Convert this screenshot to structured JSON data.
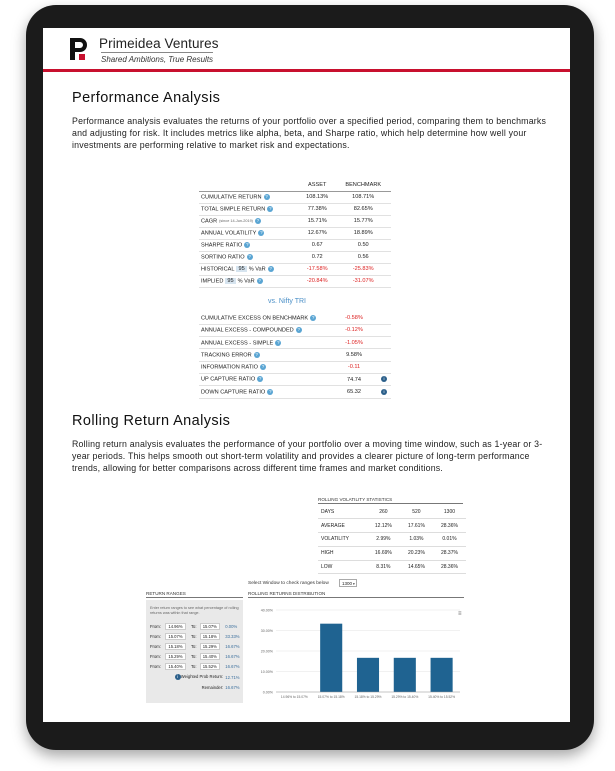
{
  "brand": {
    "name": "Primeidea Ventures",
    "tagline": "Shared Ambitions, True Results",
    "logo_letter": "P",
    "accent": "#c8102e"
  },
  "performance": {
    "title": "Performance Analysis",
    "description": "Performance analysis evaluates the returns of your portfolio over a specified period, comparing them to benchmarks and adjusting for risk. It includes metrics like alpha, beta, and Sharpe ratio, which help determine how well your investments are performing relative to market risk and expectations.",
    "headers": {
      "asset": "ASSET",
      "benchmark": "BENCHMARK"
    },
    "rows": [
      {
        "label": "CUMULATIVE RETURN",
        "asset": "108.13%",
        "benchmark": "108.71%"
      },
      {
        "label": "TOTAL SIMPLE RETURN",
        "asset": "77.38%",
        "benchmark": "82.65%"
      },
      {
        "label": "CAGR",
        "note": "(since 14-Jun-2019)",
        "asset": "15.71%",
        "benchmark": "15.77%"
      },
      {
        "label": "ANNUAL VOLATILITY",
        "asset": "12.67%",
        "benchmark": "18.89%"
      },
      {
        "label": "SHARPE RATIO",
        "asset": "0.67",
        "benchmark": "0.50"
      },
      {
        "label": "SORTINO RATIO",
        "asset": "0.72",
        "benchmark": "0.56"
      },
      {
        "label": "HISTORICAL",
        "input": "95",
        "suffix": "% VaR",
        "asset": "-17.58%",
        "benchmark": "-25.83%"
      },
      {
        "label": "IMPLIED",
        "input": "95",
        "suffix": "% VaR",
        "asset": "-20.84%",
        "benchmark": "-31.07%"
      }
    ],
    "vs_label": "vs. Nifty TRI",
    "bench_rows": [
      {
        "label": "CUMULATIVE EXCESS ON BENCHMARK",
        "value": "-0.58%",
        "neg": true,
        "info": false
      },
      {
        "label": "ANNUAL EXCESS - COMPOUNDED",
        "value": "-0.12%",
        "neg": true,
        "info": false
      },
      {
        "label": "ANNUAL EXCESS - SIMPLE",
        "value": "-1.05%",
        "neg": true,
        "info": false
      },
      {
        "label": "TRACKING ERROR",
        "value": "9.58%",
        "neg": false,
        "info": false
      },
      {
        "label": "INFORMATION RATIO",
        "value": "-0.11",
        "neg": true,
        "info": false
      },
      {
        "label": "UP CAPTURE RATIO",
        "value": "74.74",
        "neg": false,
        "info": true
      },
      {
        "label": "DOWN CAPTURE RATIO",
        "value": "65.32",
        "neg": false,
        "info": true
      }
    ]
  },
  "rolling": {
    "title": "Rolling Return Analysis",
    "description": "Rolling return analysis evaluates the performance of your portfolio over a moving time window, such as 1-year or 3-year periods. This helps smooth out short-term volatility and provides a clearer picture of long-term performance trends, allowing for better comparisons across different time frames and market conditions.",
    "volatility": {
      "title": "ROLLING VOLATILITY STATISTICS",
      "header": [
        "DAYS",
        "260",
        "520",
        "1300"
      ],
      "rows": [
        [
          "AVERAGE",
          "12.12%",
          "17.61%",
          "28.36%"
        ],
        [
          "VOLATILITY",
          "2.99%",
          "1.03%",
          "0.01%"
        ],
        [
          "HIGH",
          "16.69%",
          "20.23%",
          "28.37%"
        ],
        [
          "LOW",
          "8.31%",
          "14.65%",
          "28.36%"
        ]
      ]
    },
    "window_label": "Select Window to check ranges below",
    "window_value": "1300",
    "ranges": {
      "title": "RETURN RANGES",
      "note": "Enter return ranges to see what percentage of rolling returns was within that range.",
      "from_label": "From:",
      "to_label": "To:",
      "rows": [
        {
          "from": "14.96%",
          "to": "15.07%",
          "pct": "0.00%"
        },
        {
          "from": "15.07%",
          "to": "15.18%",
          "pct": "33.33%"
        },
        {
          "from": "15.18%",
          "to": "15.29%",
          "pct": "16.67%"
        },
        {
          "from": "15.29%",
          "to": "15.40%",
          "pct": "16.67%"
        },
        {
          "from": "15.40%",
          "to": "15.52%",
          "pct": "16.67%"
        }
      ],
      "weighted_label": "Weighted Prob Return:",
      "weighted_value": "12.71%",
      "remainder_label": "Remainder:",
      "remainder_value": "16.67%"
    },
    "distribution_title": "ROLLING RETURNS DISTRIBUTION"
  },
  "chart_data": {
    "type": "bar",
    "categories": [
      "14.96% to 15.07%",
      "15.07% to 15.18%",
      "15.18% to 15.29%",
      "15.29% to 15.40%",
      "15.40% to 15.52%"
    ],
    "values": [
      0,
      33.33,
      16.67,
      16.67,
      16.67
    ],
    "ylim": [
      0,
      40
    ],
    "yticks": [
      "0.00%",
      "10.00%",
      "20.00%",
      "30.00%",
      "40.00%"
    ],
    "bar_color": "#1f6391",
    "grid": true
  }
}
